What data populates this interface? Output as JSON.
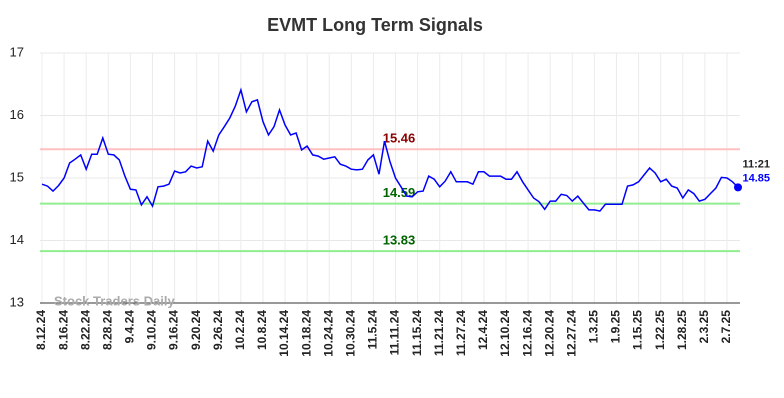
{
  "chart_data": {
    "type": "line",
    "title": "EVMT Long Term Signals",
    "categories": [
      "8.12.24",
      null,
      null,
      null,
      "8.16.24",
      null,
      null,
      null,
      "8.22.24",
      null,
      null,
      null,
      "8.28.24",
      null,
      null,
      null,
      "9.4.24",
      null,
      null,
      null,
      "9.10.24",
      null,
      null,
      null,
      "9.16.24",
      null,
      null,
      null,
      "9.20.24",
      null,
      null,
      null,
      "9.26.24",
      null,
      null,
      null,
      "10.2.24",
      null,
      null,
      null,
      "10.8.24",
      null,
      null,
      null,
      "10.14.24",
      null,
      null,
      null,
      "10.18.24",
      null,
      null,
      null,
      "10.24.24",
      null,
      null,
      null,
      "10.30.24",
      null,
      null,
      null,
      "11.5.24",
      null,
      null,
      null,
      "11.11.24",
      null,
      null,
      null,
      "11.15.24",
      null,
      null,
      null,
      "11.21.24",
      null,
      null,
      null,
      "11.27.24",
      null,
      null,
      null,
      "12.4.24",
      null,
      null,
      null,
      "12.10.24",
      null,
      null,
      null,
      "12.16.24",
      null,
      null,
      null,
      "12.20.24",
      null,
      null,
      null,
      "12.27.24",
      null,
      null,
      null,
      "1.3.25",
      null,
      null,
      null,
      "1.9.25",
      null,
      null,
      null,
      "1.15.25",
      null,
      null,
      null,
      "1.22.25",
      null,
      null,
      null,
      "1.28.25",
      null,
      null,
      null,
      "2.3.25",
      null,
      null,
      null,
      "2.7.25",
      null,
      null
    ],
    "series": [
      {
        "color": "#0000ff",
        "values": [
          14.9,
          14.87,
          14.79,
          14.88,
          15.0,
          15.24,
          15.3,
          15.37,
          15.14,
          15.38,
          15.38,
          15.64,
          15.38,
          15.37,
          15.29,
          15.03,
          14.82,
          14.81,
          14.57,
          14.7,
          14.55,
          14.86,
          14.87,
          14.9,
          15.11,
          15.08,
          15.1,
          15.19,
          15.16,
          15.18,
          15.59,
          15.43,
          15.69,
          15.82,
          15.96,
          16.15,
          16.41,
          16.06,
          16.22,
          16.25,
          15.9,
          15.69,
          15.82,
          16.09,
          15.85,
          15.69,
          15.72,
          15.45,
          15.51,
          15.37,
          15.35,
          15.3,
          15.32,
          15.34,
          15.22,
          15.19,
          15.14,
          15.13,
          15.14,
          15.29,
          15.37,
          15.06,
          15.59,
          15.26,
          15.0,
          14.86,
          14.71,
          14.7,
          14.78,
          14.79,
          15.03,
          14.98,
          14.86,
          14.95,
          15.1,
          14.94,
          14.94,
          14.94,
          14.9,
          15.1,
          15.1,
          15.03,
          15.03,
          15.03,
          14.98,
          14.98,
          15.1,
          14.94,
          14.81,
          14.68,
          14.62,
          14.5,
          14.63,
          14.63,
          14.74,
          14.72,
          14.63,
          14.71,
          14.6,
          14.49,
          14.49,
          14.47,
          14.58,
          14.58,
          14.58,
          14.58,
          14.87,
          14.89,
          14.94,
          15.05,
          15.16,
          15.08,
          14.94,
          14.98,
          14.87,
          14.84,
          14.68,
          14.81,
          14.75,
          14.63,
          14.66,
          14.75,
          14.84,
          15.01,
          15.0,
          14.94,
          14.85
        ]
      }
    ],
    "reference_lines": [
      {
        "value": 15.46,
        "color": "#ffc0c0",
        "label_color": "#8b0000"
      },
      {
        "value": 14.59,
        "color": "#90ee90",
        "label_color": "#006400"
      },
      {
        "value": 13.83,
        "color": "#90ee90",
        "label_color": "#006400"
      }
    ],
    "last_time": "11:21",
    "watermark": "Stock Traders Daily",
    "ylim": [
      13,
      17
    ],
    "yticks": [
      13,
      14,
      15,
      16,
      17
    ],
    "grid": true
  }
}
